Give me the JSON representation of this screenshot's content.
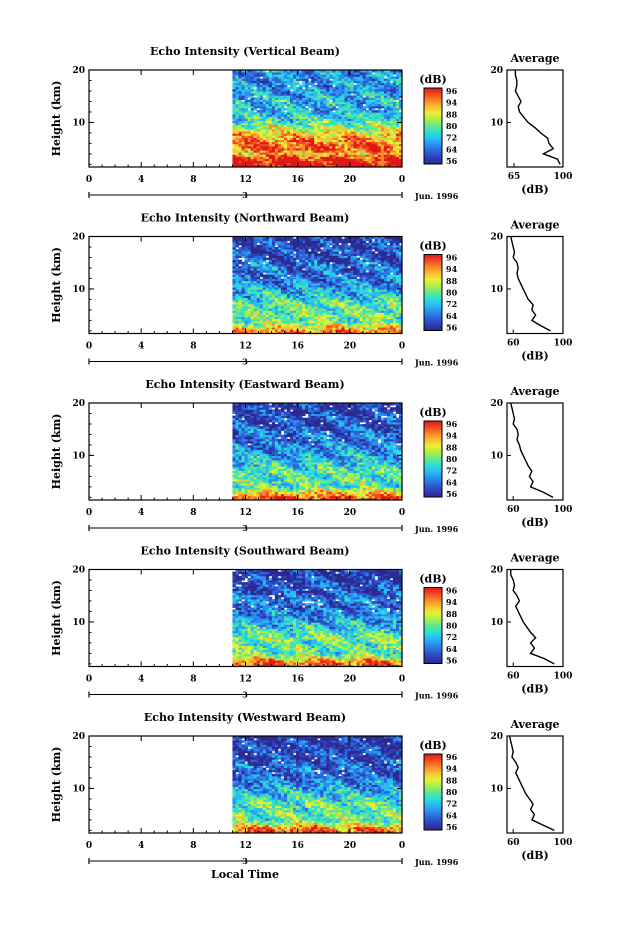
{
  "figure": {
    "xlabel": "Local Time",
    "date_label": "Jun. 1996"
  },
  "colors": [
    "#2a2a8f",
    "#2f3fb8",
    "#2c64d8",
    "#2a8ff0",
    "#27bdf5",
    "#2ee0d0",
    "#60e890",
    "#aaf048",
    "#e8f03a",
    "#f8c030",
    "#f88828",
    "#f04a22",
    "#e01818"
  ],
  "chart_data": [
    {
      "type": "heatmap",
      "title": "Echo Intensity (Vertical Beam)",
      "ylabel": "Height (km)",
      "x_ticks": [
        "0",
        "4",
        "8",
        "12",
        "16",
        "20",
        "0"
      ],
      "day_label": "3",
      "x_range": [
        0,
        24
      ],
      "data_start_hour": 11,
      "y_ticks": [
        "10",
        "20"
      ],
      "y_range": [
        1.5,
        20
      ],
      "colorbar": {
        "label": "(dB)",
        "ticks": [
          "56",
          "64",
          "72",
          "80",
          "88",
          "94",
          "96"
        ],
        "range": [
          56,
          96
        ]
      },
      "profile": {
        "title": "Average",
        "xlabel": "(dB)",
        "x_ticks": [
          "65",
          "100"
        ],
        "x_range": [
          60,
          100
        ],
        "y_ticks": [
          "10",
          "20"
        ],
        "heights": [
          20,
          19,
          18,
          17,
          16,
          15,
          14,
          13,
          12,
          11,
          10,
          9,
          8,
          7,
          6,
          5,
          4,
          3,
          2
        ],
        "values": [
          66,
          66,
          67,
          67,
          66,
          68,
          70,
          68,
          69,
          72,
          75,
          80,
          84,
          89,
          90,
          93,
          86,
          96,
          98
        ]
      }
    },
    {
      "type": "heatmap",
      "title": "Echo Intensity (Northward Beam)",
      "ylabel": "Height (km)",
      "x_ticks": [
        "0",
        "4",
        "8",
        "12",
        "16",
        "20",
        "0"
      ],
      "day_label": "3",
      "x_range": [
        0,
        24
      ],
      "data_start_hour": 11,
      "y_ticks": [
        "10",
        "20"
      ],
      "y_range": [
        1.5,
        20
      ],
      "colorbar": {
        "label": "(dB)",
        "ticks": [
          "56",
          "64",
          "72",
          "80",
          "88",
          "94",
          "96"
        ],
        "range": [
          56,
          96
        ]
      },
      "profile": {
        "title": "Average",
        "xlabel": "(dB)",
        "x_ticks": [
          "60",
          "100"
        ],
        "x_range": [
          55,
          100
        ],
        "y_ticks": [
          "10",
          "20"
        ],
        "heights": [
          20,
          19,
          18,
          17,
          16,
          15,
          14,
          13,
          12,
          11,
          10,
          9,
          8,
          7,
          6,
          5,
          4,
          3,
          2
        ],
        "values": [
          58,
          59,
          60,
          61,
          60,
          63,
          64,
          63,
          64,
          66,
          68,
          70,
          72,
          76,
          75,
          78,
          75,
          82,
          90
        ]
      }
    },
    {
      "type": "heatmap",
      "title": "Echo Intensity (Eastward Beam)",
      "ylabel": "Height (km)",
      "x_ticks": [
        "0",
        "4",
        "8",
        "12",
        "16",
        "20",
        "0"
      ],
      "day_label": "3",
      "x_range": [
        0,
        24
      ],
      "data_start_hour": 11,
      "y_ticks": [
        "10",
        "20"
      ],
      "y_range": [
        1.5,
        20
      ],
      "colorbar": {
        "label": "(dB)",
        "ticks": [
          "56",
          "64",
          "72",
          "80",
          "88",
          "94",
          "96"
        ],
        "range": [
          56,
          96
        ]
      },
      "profile": {
        "title": "Average",
        "xlabel": "(dB)",
        "x_ticks": [
          "60",
          "100"
        ],
        "x_range": [
          55,
          100
        ],
        "y_ticks": [
          "10",
          "20"
        ],
        "heights": [
          20,
          19,
          18,
          17,
          16,
          15,
          14,
          13,
          12,
          11,
          10,
          9,
          8,
          7,
          6,
          5,
          4,
          3,
          2
        ],
        "values": [
          58,
          59,
          60,
          61,
          60,
          63,
          64,
          63,
          65,
          66,
          68,
          70,
          72,
          75,
          73,
          76,
          74,
          84,
          92
        ]
      }
    },
    {
      "type": "heatmap",
      "title": "Echo Intensity (Southward Beam)",
      "ylabel": "Height (km)",
      "x_ticks": [
        "0",
        "4",
        "8",
        "12",
        "16",
        "20",
        "0"
      ],
      "day_label": "3",
      "x_range": [
        0,
        24
      ],
      "data_start_hour": 11,
      "y_ticks": [
        "10",
        "20"
      ],
      "y_range": [
        1.5,
        20
      ],
      "colorbar": {
        "label": "(dB)",
        "ticks": [
          "56",
          "64",
          "72",
          "80",
          "88",
          "94",
          "96"
        ],
        "range": [
          56,
          96
        ]
      },
      "profile": {
        "title": "Average",
        "xlabel": "(dB)",
        "x_ticks": [
          "60",
          "100"
        ],
        "x_range": [
          55,
          100
        ],
        "y_ticks": [
          "10",
          "20"
        ],
        "heights": [
          20,
          19,
          18,
          17,
          16,
          15,
          14,
          13,
          12,
          11,
          10,
          9,
          8,
          7,
          6,
          5,
          4,
          3,
          2
        ],
        "values": [
          58,
          58,
          60,
          61,
          60,
          63,
          65,
          62,
          64,
          66,
          68,
          71,
          74,
          78,
          74,
          77,
          74,
          85,
          93
        ]
      }
    },
    {
      "type": "heatmap",
      "title": "Echo Intensity (Westward Beam)",
      "ylabel": "Height (km)",
      "x_ticks": [
        "0",
        "4",
        "8",
        "12",
        "16",
        "20",
        "0"
      ],
      "day_label": "3",
      "x_range": [
        0,
        24
      ],
      "data_start_hour": 11,
      "y_ticks": [
        "10",
        "20"
      ],
      "y_range": [
        1.5,
        20
      ],
      "colorbar": {
        "label": "(dB)",
        "ticks": [
          "56",
          "64",
          "72",
          "80",
          "88",
          "94",
          "96"
        ],
        "range": [
          56,
          96
        ]
      },
      "profile": {
        "title": "Average",
        "xlabel": "(dB)",
        "x_ticks": [
          "60",
          "100"
        ],
        "x_range": [
          55,
          100
        ],
        "y_ticks": [
          "10",
          "20"
        ],
        "heights": [
          20,
          19,
          18,
          17,
          16,
          15,
          14,
          13,
          12,
          11,
          10,
          9,
          8,
          7,
          6,
          5,
          4,
          3,
          2
        ],
        "values": [
          57,
          58,
          59,
          60,
          59,
          62,
          64,
          62,
          64,
          66,
          68,
          70,
          73,
          76,
          74,
          77,
          75,
          84,
          93
        ]
      }
    }
  ]
}
